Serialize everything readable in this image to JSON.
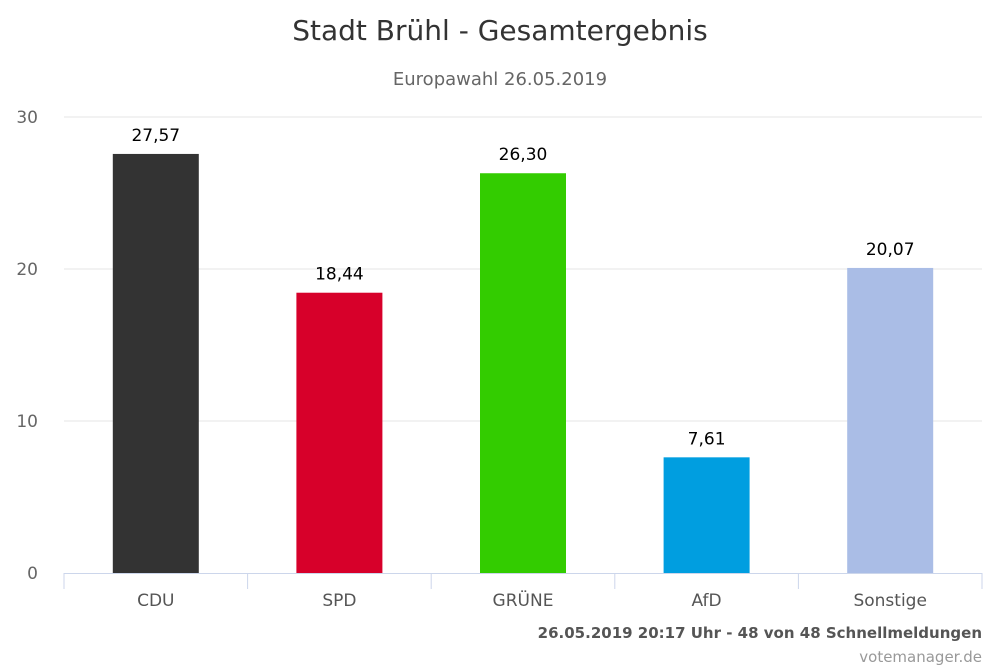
{
  "chart_data": {
    "type": "bar",
    "title": "Stadt Brühl - Gesamtergebnis",
    "subtitle": "Europawahl 26.05.2019",
    "xlabel": "",
    "ylabel": "",
    "categories": [
      "CDU",
      "SPD",
      "GRÜNE",
      "AfD",
      "Sonstige"
    ],
    "values": [
      27.57,
      18.44,
      26.3,
      7.61,
      20.07
    ],
    "value_labels": [
      "27,57",
      "18,44",
      "26,30",
      "7,61",
      "20,07"
    ],
    "colors": [
      "#333333",
      "#d7002a",
      "#33cc00",
      "#009ee0",
      "#aabde6"
    ],
    "ylim": [
      0,
      30
    ],
    "yticks": [
      0,
      10,
      20,
      30
    ],
    "ytick_labels": [
      "0",
      "10",
      "20",
      "30"
    ],
    "grid": true,
    "legend": "none"
  },
  "footer": {
    "status": "26.05.2019 20:17 Uhr - 48 von 48 Schnellmeldungen",
    "credit": "votemanager.de"
  }
}
